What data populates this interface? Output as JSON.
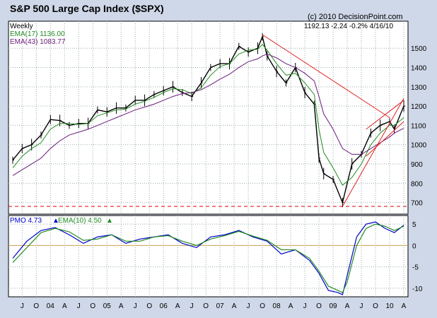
{
  "header": {
    "title": "S&P 500 Large Cap Index ($SPX)",
    "copyright": "(c) 2010 DecisionPoint.com",
    "period": "Weekly",
    "quote": "1192.13  -2.24  -0.2%  4/16/10"
  },
  "legend": {
    "ema17": "EMA(17) 1136.00",
    "ema43": "EMA(43) 1083.77"
  },
  "pmo_legend": {
    "pmo": "PMO  4.73",
    "ema10": "EMA(10)  4.50"
  },
  "colors": {
    "frame": "#cfd8e8",
    "price_bars": "#000000",
    "ema17": "#228b22",
    "ema43": "#6a1b7a",
    "trendlines": "#e02020",
    "pmo": "#0000cc",
    "pmo_signal": "#228b22",
    "zero_line": "#c8a050"
  },
  "chart_data": [
    {
      "type": "line",
      "title": "S&P 500 Large Cap Index ($SPX)",
      "subtitle": "Weekly",
      "x": [
        "2003-05",
        "2003-07",
        "2003-09",
        "2003-11",
        "2004-01",
        "2004-03",
        "2004-05",
        "2004-07",
        "2004-09",
        "2004-11",
        "2005-01",
        "2005-03",
        "2005-05",
        "2005-07",
        "2005-09",
        "2005-11",
        "2006-01",
        "2006-03",
        "2006-05",
        "2006-07",
        "2006-09",
        "2006-11",
        "2007-01",
        "2007-03",
        "2007-05",
        "2007-07",
        "2007-09",
        "2007-10",
        "2007-11",
        "2008-01",
        "2008-03",
        "2008-05",
        "2008-07",
        "2008-09",
        "2008-10",
        "2008-11",
        "2009-01",
        "2009-03",
        "2009-05",
        "2009-07",
        "2009-09",
        "2009-11",
        "2010-01",
        "2010-02",
        "2010-04"
      ],
      "series": [
        {
          "name": "$SPX",
          "values": [
            920,
            980,
            1000,
            1050,
            1130,
            1125,
            1100,
            1110,
            1110,
            1180,
            1170,
            1190,
            1190,
            1230,
            1230,
            1260,
            1280,
            1300,
            1270,
            1250,
            1320,
            1400,
            1420,
            1420,
            1510,
            1480,
            1500,
            1560,
            1460,
            1380,
            1320,
            1400,
            1270,
            1210,
            930,
            850,
            820,
            700,
            900,
            950,
            1060,
            1100,
            1120,
            1080,
            1200
          ]
        },
        {
          "name": "EMA(17)",
          "values": [
            880,
            940,
            980,
            1010,
            1080,
            1110,
            1110,
            1105,
            1110,
            1150,
            1165,
            1180,
            1185,
            1210,
            1225,
            1245,
            1270,
            1290,
            1285,
            1265,
            1295,
            1360,
            1405,
            1420,
            1470,
            1490,
            1495,
            1520,
            1490,
            1420,
            1360,
            1370,
            1320,
            1260,
            1080,
            960,
            880,
            790,
            830,
            900,
            1000,
            1060,
            1100,
            1100,
            1140
          ]
        },
        {
          "name": "EMA(43)",
          "values": [
            840,
            870,
            900,
            930,
            980,
            1020,
            1050,
            1065,
            1080,
            1100,
            1120,
            1140,
            1160,
            1180,
            1195,
            1210,
            1230,
            1250,
            1265,
            1270,
            1285,
            1310,
            1340,
            1365,
            1400,
            1430,
            1445,
            1460,
            1470,
            1450,
            1420,
            1400,
            1370,
            1330,
            1250,
            1160,
            1080,
            980,
            950,
            950,
            980,
            1010,
            1040,
            1060,
            1085
          ]
        }
      ],
      "trendlines": [
        {
          "from": [
            "2007-10",
            1570
          ],
          "to": [
            "2010-01",
            1140
          ]
        },
        {
          "from": [
            "2009-03",
            680
          ],
          "to": [
            "2010-04",
            1240
          ]
        },
        {
          "from": [
            "2009-08",
            1080
          ],
          "to": [
            "2010-04",
            1230
          ]
        },
        {
          "from": [
            "2009-08",
            940
          ],
          "to": [
            "2010-04",
            1120
          ]
        }
      ],
      "horizontal_line": 680,
      "ylim": [
        640,
        1640
      ],
      "yticks": [
        700,
        800,
        900,
        1000,
        1100,
        1200,
        1300,
        1400,
        1500
      ],
      "grid": true,
      "legend": "top-left"
    },
    {
      "type": "line",
      "title": "PMO",
      "x": [
        "2003-05",
        "2003-08",
        "2003-11",
        "2004-02",
        "2004-05",
        "2004-08",
        "2004-11",
        "2005-02",
        "2005-05",
        "2005-08",
        "2005-11",
        "2006-02",
        "2006-05",
        "2006-08",
        "2006-11",
        "2007-02",
        "2007-05",
        "2007-08",
        "2007-11",
        "2008-02",
        "2008-05",
        "2008-08",
        "2008-10",
        "2008-12",
        "2009-02",
        "2009-03",
        "2009-04",
        "2009-06",
        "2009-08",
        "2009-10",
        "2009-12",
        "2010-02",
        "2010-04"
      ],
      "series": [
        {
          "name": "PMO",
          "values": [
            -3,
            1,
            3.5,
            4.2,
            2.5,
            0.5,
            2,
            2.5,
            0.5,
            1.5,
            2,
            2.5,
            0.5,
            -0.5,
            2,
            2.5,
            3.5,
            2,
            1,
            -2,
            -1,
            -3.5,
            -6.5,
            -10.5,
            -11,
            -11.5,
            -7,
            2,
            5,
            5.5,
            4,
            3,
            4.73
          ]
        },
        {
          "name": "EMA(10)",
          "values": [
            -4,
            -0.5,
            3,
            4,
            3.2,
            1.2,
            1.5,
            2.5,
            1,
            1,
            2,
            2.3,
            1,
            0,
            1.5,
            2.3,
            3.3,
            2.2,
            1.2,
            -1,
            -1,
            -3,
            -6,
            -9.5,
            -10.5,
            -11,
            -8.5,
            0,
            4,
            5,
            4.5,
            3.5,
            4.5
          ]
        }
      ],
      "ylim": [
        -12,
        7
      ],
      "yticks": [
        -10,
        -5,
        0,
        5
      ],
      "grid": true,
      "legend": "top-left"
    }
  ],
  "x_axis": {
    "ticks": [
      {
        "label": "J",
        "d": "2003-07"
      },
      {
        "label": "O",
        "d": "2003-10"
      },
      {
        "label": "04",
        "d": "2004-01"
      },
      {
        "label": "A",
        "d": "2004-04"
      },
      {
        "label": "J",
        "d": "2004-07"
      },
      {
        "label": "O",
        "d": "2004-10"
      },
      {
        "label": "05",
        "d": "2005-01"
      },
      {
        "label": "A",
        "d": "2005-04"
      },
      {
        "label": "J",
        "d": "2005-07"
      },
      {
        "label": "O",
        "d": "2005-10"
      },
      {
        "label": "06",
        "d": "2006-01"
      },
      {
        "label": "A",
        "d": "2006-04"
      },
      {
        "label": "J",
        "d": "2006-07"
      },
      {
        "label": "O",
        "d": "2006-10"
      },
      {
        "label": "07",
        "d": "2007-01"
      },
      {
        "label": "A",
        "d": "2007-04"
      },
      {
        "label": "J",
        "d": "2007-07"
      },
      {
        "label": "O",
        "d": "2007-10"
      },
      {
        "label": "08",
        "d": "2008-01"
      },
      {
        "label": "A",
        "d": "2008-04"
      },
      {
        "label": "J",
        "d": "2008-07"
      },
      {
        "label": "O",
        "d": "2008-10"
      },
      {
        "label": "09",
        "d": "2009-01"
      },
      {
        "label": "A",
        "d": "2009-04"
      },
      {
        "label": "J",
        "d": "2009-07"
      },
      {
        "label": "O",
        "d": "2009-10"
      },
      {
        "label": "10",
        "d": "2010-01"
      },
      {
        "label": "A",
        "d": "2010-04"
      }
    ],
    "range": [
      "2003-05",
      "2010-04"
    ]
  }
}
